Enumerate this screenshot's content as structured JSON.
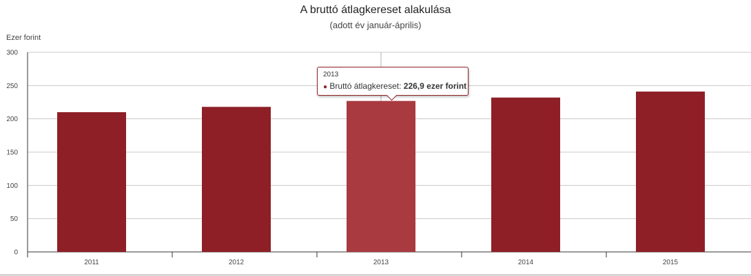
{
  "chart_data": {
    "type": "bar",
    "title": "A bruttó átlagkereset alakulása",
    "subtitle": "(adott év január-április)",
    "ylabel": "Ezer forint",
    "xlabel": "",
    "categories": [
      "2011",
      "2012",
      "2013",
      "2014",
      "2015"
    ],
    "series": [
      {
        "name": "Bruttó átlagkereset",
        "values": [
          210,
          218,
          226.9,
          232,
          241
        ]
      }
    ],
    "ylim": [
      0,
      300
    ],
    "yticks": [
      "0",
      "50",
      "100",
      "150",
      "200",
      "250",
      "300"
    ],
    "grid": true,
    "bar_color": "#8e1f26",
    "highlight_color": "#a83a40",
    "highlight_index": 2
  },
  "tooltip": {
    "year": "2013",
    "series_label": "Bruttó átlagkereset: ",
    "value_text": "226,9 ezer forint"
  }
}
